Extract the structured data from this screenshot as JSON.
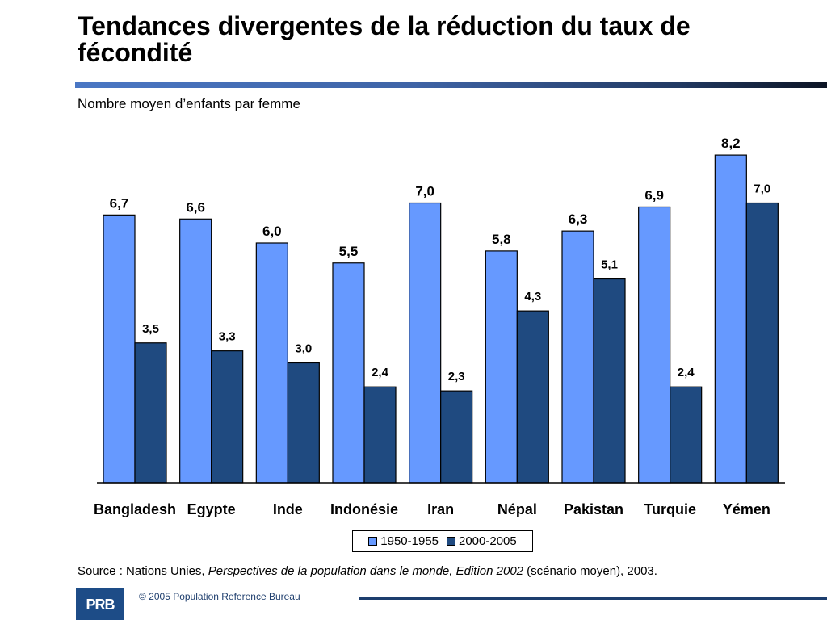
{
  "slide": {
    "title": "Tendances divergentes de la réduction du taux de fécondité",
    "subtitle": "Nombre moyen d’enfants par femme",
    "source_prefix": "Source : Nations Unies, ",
    "source_italic": "Perspectives de la population dans le monde, Edition 2002",
    "source_suffix": " (scénario moyen), 2003.",
    "copyright": "© 2005 Population Reference Bureau",
    "logo_text": "PRB"
  },
  "legend": {
    "items": [
      {
        "label": "1950-1955",
        "color": "#6699ff"
      },
      {
        "label": "2000-2005",
        "color": "#1f4a80"
      }
    ]
  },
  "chart_data": {
    "type": "bar",
    "title": "",
    "xlabel": "",
    "ylabel": "",
    "ylim": [
      0,
      9
    ],
    "grid": false,
    "legend_position": "bottom",
    "categories": [
      "Bangladesh",
      "Egypte",
      "Inde",
      "Indonésie",
      "Iran",
      "Népal",
      "Pakistan",
      "Turquie",
      "Yémen"
    ],
    "series": [
      {
        "name": "1950-1955",
        "color": "#6699ff",
        "values": [
          6.7,
          6.6,
          6.0,
          5.5,
          7.0,
          5.8,
          6.3,
          6.9,
          8.2
        ],
        "labels": [
          "6,7",
          "6,6",
          "6,0",
          "5,5",
          "7,0",
          "5,8",
          "6,3",
          "6,9",
          "8,2"
        ]
      },
      {
        "name": "2000-2005",
        "color": "#1f4a80",
        "values": [
          3.5,
          3.3,
          3.0,
          2.4,
          2.3,
          4.3,
          5.1,
          2.4,
          7.0
        ],
        "labels": [
          "3,5",
          "3,3",
          "3,0",
          "2,4",
          "2,3",
          "4,3",
          "5,1",
          "2,4",
          "7,0"
        ]
      }
    ]
  }
}
